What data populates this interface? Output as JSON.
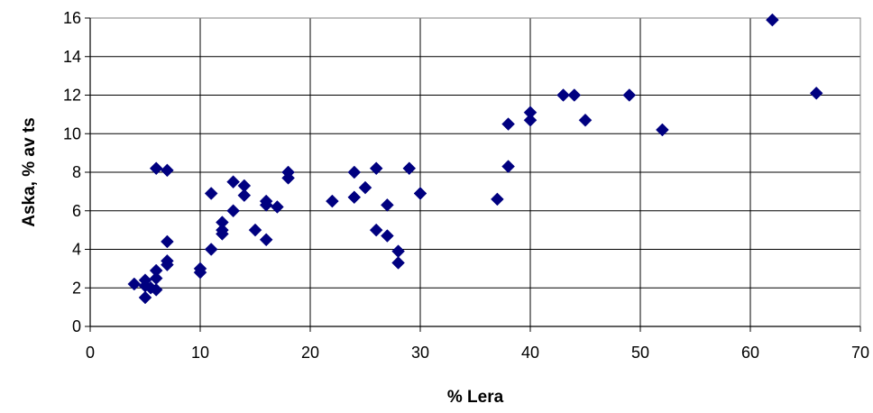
{
  "chart_data": {
    "type": "scatter",
    "title": "",
    "xlabel": "% Lera",
    "ylabel": "Aska, % av ts",
    "xlim": [
      0,
      70
    ],
    "ylim": [
      0,
      16
    ],
    "x_ticks": [
      "0",
      "10",
      "20",
      "30",
      "40",
      "50",
      "60",
      "70"
    ],
    "y_ticks": [
      "0",
      "2",
      "4",
      "6",
      "8",
      "10",
      "12",
      "14",
      "16"
    ],
    "grid": true,
    "legend": "none",
    "marker": "diamond",
    "marker_color": "#000080",
    "points": [
      {
        "x": 4,
        "y": 2.2
      },
      {
        "x": 5,
        "y": 2.1
      },
      {
        "x": 5,
        "y": 2.4
      },
      {
        "x": 5,
        "y": 1.5
      },
      {
        "x": 5.5,
        "y": 2.0
      },
      {
        "x": 6,
        "y": 2.5
      },
      {
        "x": 6,
        "y": 2.9
      },
      {
        "x": 6,
        "y": 1.9
      },
      {
        "x": 6,
        "y": 8.2
      },
      {
        "x": 7,
        "y": 8.1
      },
      {
        "x": 7,
        "y": 4.4
      },
      {
        "x": 7,
        "y": 3.4
      },
      {
        "x": 7,
        "y": 3.2
      },
      {
        "x": 10,
        "y": 3.0
      },
      {
        "x": 10,
        "y": 2.8
      },
      {
        "x": 11,
        "y": 6.9
      },
      {
        "x": 11,
        "y": 4.0
      },
      {
        "x": 12,
        "y": 5.4
      },
      {
        "x": 12,
        "y": 5.0
      },
      {
        "x": 12,
        "y": 4.8
      },
      {
        "x": 13,
        "y": 7.5
      },
      {
        "x": 13,
        "y": 6.0
      },
      {
        "x": 14,
        "y": 7.3
      },
      {
        "x": 14,
        "y": 6.8
      },
      {
        "x": 15,
        "y": 5.0
      },
      {
        "x": 16,
        "y": 6.5
      },
      {
        "x": 16,
        "y": 6.3
      },
      {
        "x": 16,
        "y": 4.5
      },
      {
        "x": 17,
        "y": 6.2
      },
      {
        "x": 18,
        "y": 8.0
      },
      {
        "x": 18,
        "y": 7.7
      },
      {
        "x": 22,
        "y": 6.5
      },
      {
        "x": 24,
        "y": 8.0
      },
      {
        "x": 24,
        "y": 6.7
      },
      {
        "x": 25,
        "y": 7.2
      },
      {
        "x": 26,
        "y": 8.2
      },
      {
        "x": 26,
        "y": 5.0
      },
      {
        "x": 27,
        "y": 6.3
      },
      {
        "x": 27,
        "y": 4.7
      },
      {
        "x": 28,
        "y": 3.9
      },
      {
        "x": 28,
        "y": 3.3
      },
      {
        "x": 29,
        "y": 8.2
      },
      {
        "x": 30,
        "y": 6.9
      },
      {
        "x": 37,
        "y": 6.6
      },
      {
        "x": 38,
        "y": 10.5
      },
      {
        "x": 38,
        "y": 8.3
      },
      {
        "x": 40,
        "y": 11.1
      },
      {
        "x": 40,
        "y": 10.7
      },
      {
        "x": 43,
        "y": 12.0
      },
      {
        "x": 44,
        "y": 12.0
      },
      {
        "x": 45,
        "y": 10.7
      },
      {
        "x": 49,
        "y": 12.0
      },
      {
        "x": 52,
        "y": 10.2
      },
      {
        "x": 62,
        "y": 15.9
      },
      {
        "x": 66,
        "y": 12.1
      }
    ]
  }
}
